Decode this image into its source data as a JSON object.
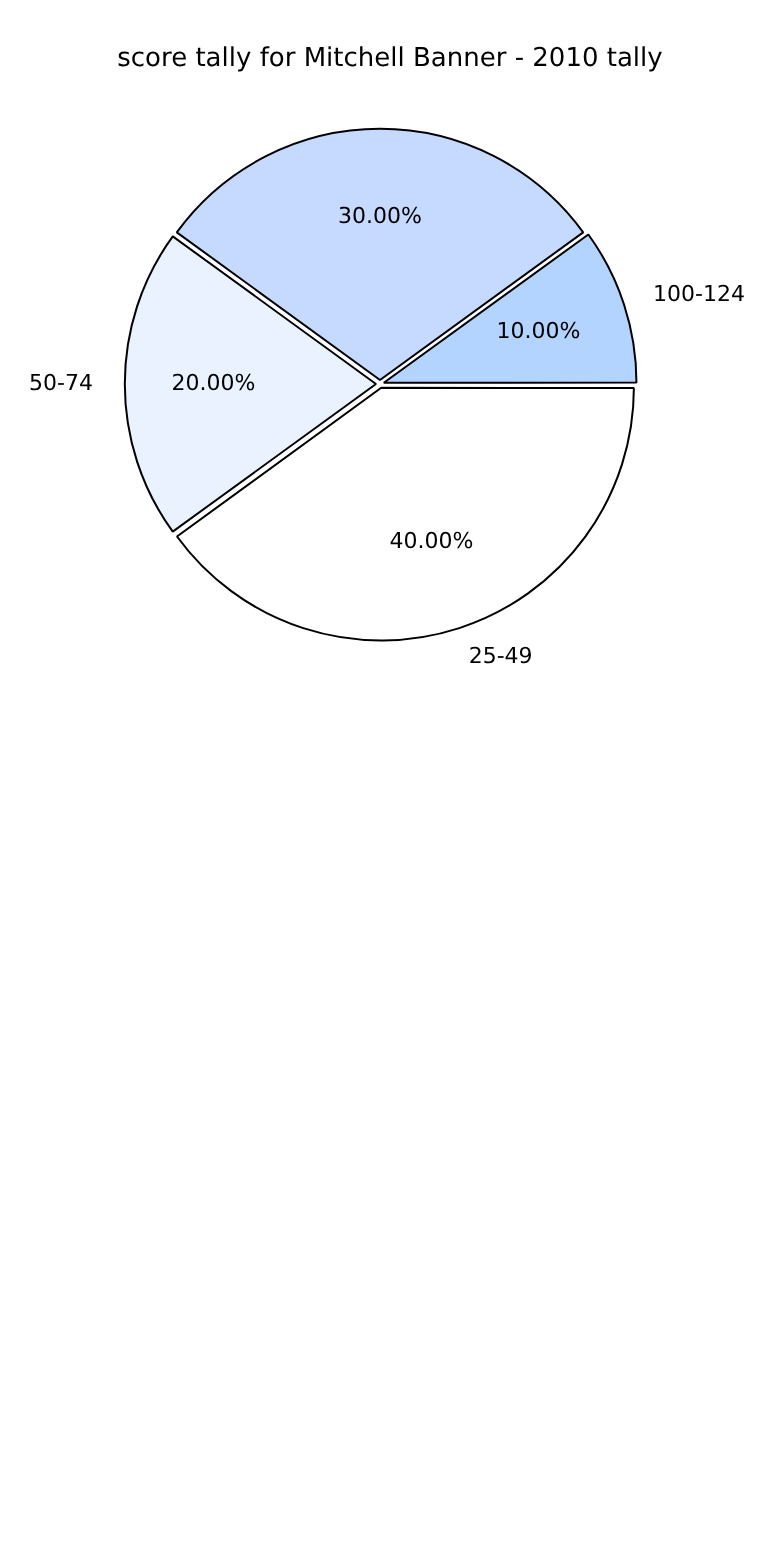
{
  "chart_data": {
    "type": "pie",
    "title": "score tally for Mitchell Banner - 2010 tally",
    "categories": [
      "25-49",
      "50-74",
      null,
      "100-124"
    ],
    "values": [
      40,
      20,
      30,
      10
    ],
    "value_labels": [
      "40.00%",
      "20.00%",
      "30.00%",
      "10.00%"
    ],
    "colors": [
      "#ffffff",
      "#eaf1ff",
      "#c6d9ff",
      "#b3d4ff"
    ],
    "legend": false
  }
}
